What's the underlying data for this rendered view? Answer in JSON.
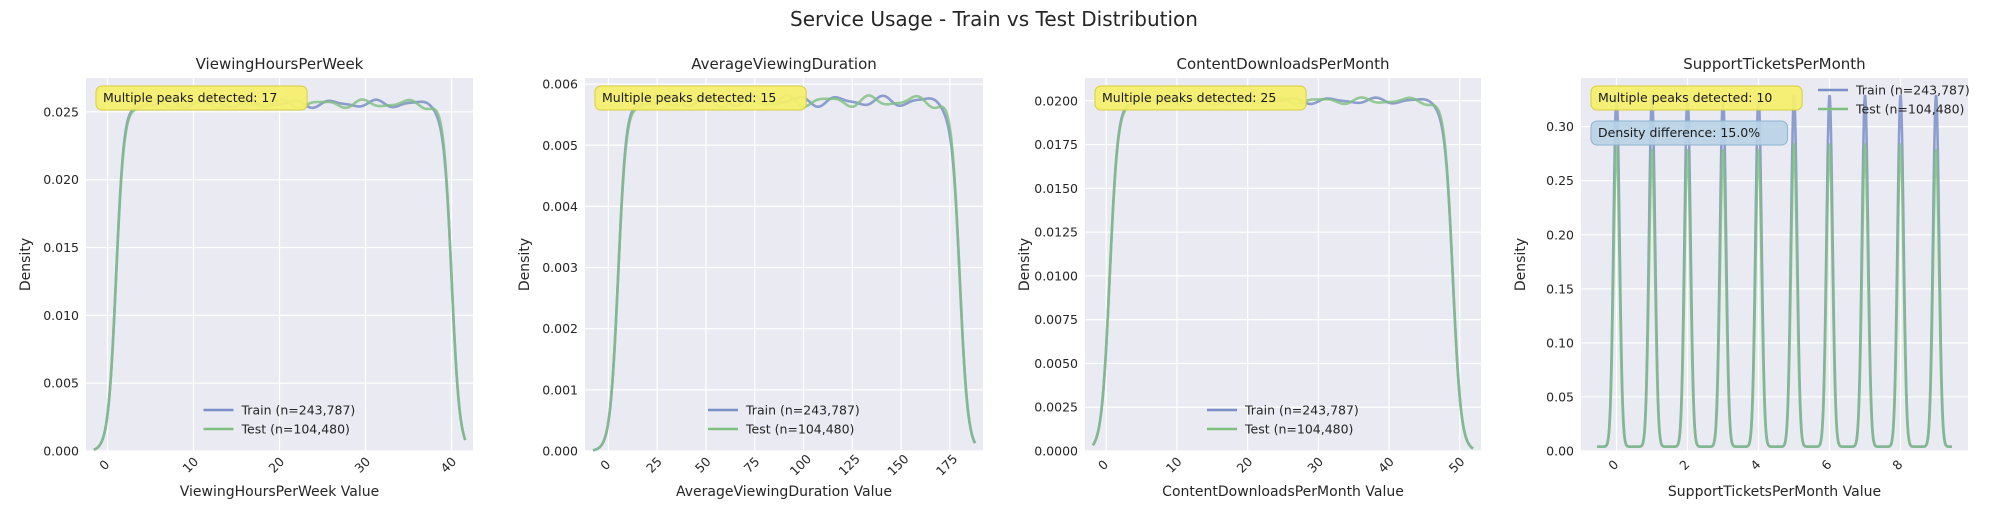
{
  "suptitle": "Service Usage - Train vs Test Distribution",
  "colors": {
    "train": "#7a8fc7",
    "test": "#7fbf7f",
    "overlap": "#6aa39a",
    "peaks_box": "#f5f06a",
    "diff_box": "#b9d3e6"
  },
  "chart_data": [
    {
      "type": "line",
      "title": "ViewingHoursPerWeek",
      "xlabel": "ViewingHoursPerWeek Value",
      "ylabel": "Density",
      "xlim": [
        -2.5,
        42.5
      ],
      "ylim": [
        0,
        0.0275
      ],
      "xticks": [
        0,
        10,
        20,
        30,
        40
      ],
      "xtick_labels": [
        "0",
        "10",
        "20",
        "30",
        "40"
      ],
      "yticks": [
        0,
        0.005,
        0.01,
        0.015,
        0.02,
        0.025
      ],
      "ytick_labels": [
        "0.000",
        "0.005",
        "0.010",
        "0.015",
        "0.020",
        "0.025"
      ],
      "xtick_rotation": 45,
      "dist": "uniform",
      "range": [
        1,
        40
      ],
      "plateau": 0.0256,
      "ripple": 0.0003,
      "legend_pos": "lower-center",
      "series": [
        {
          "name": "Train (n=243,787)",
          "kind": "train"
        },
        {
          "name": "Test (n=104,480)",
          "kind": "test"
        }
      ],
      "annotations": [
        {
          "text": "Multiple peaks detected: 17",
          "kind": "peaks"
        }
      ]
    },
    {
      "type": "line",
      "title": "AverageViewingDuration",
      "xlabel": "AverageViewingDuration Value",
      "ylabel": "Density",
      "xlim": [
        -12,
        192
      ],
      "ylim": [
        0,
        0.0061
      ],
      "xticks": [
        0,
        25,
        50,
        75,
        100,
        125,
        150,
        175
      ],
      "xtick_labels": [
        "0",
        "25",
        "50",
        "75",
        "100",
        "125",
        "150",
        "175"
      ],
      "yticks": [
        0,
        0.001,
        0.002,
        0.003,
        0.004,
        0.005,
        0.006
      ],
      "ytick_labels": [
        "0.000",
        "0.001",
        "0.002",
        "0.003",
        "0.004",
        "0.005",
        "0.006"
      ],
      "xtick_rotation": 45,
      "dist": "uniform",
      "range": [
        5,
        180
      ],
      "plateau": 0.00572,
      "ripple": 9e-05,
      "legend_pos": "lower-center",
      "series": [
        {
          "name": "Train (n=243,787)",
          "kind": "train"
        },
        {
          "name": "Test (n=104,480)",
          "kind": "test"
        }
      ],
      "annotations": [
        {
          "text": "Multiple peaks detected: 15",
          "kind": "peaks"
        }
      ]
    },
    {
      "type": "line",
      "title": "ContentDownloadsPerMonth",
      "xlabel": "ContentDownloadsPerMonth Value",
      "ylabel": "Density",
      "xlim": [
        -3,
        53
      ],
      "ylim": [
        0,
        0.0213
      ],
      "xticks": [
        0,
        10,
        20,
        30,
        40,
        50
      ],
      "xtick_labels": [
        "0",
        "10",
        "20",
        "30",
        "40",
        "50"
      ],
      "yticks": [
        0,
        0.0025,
        0.005,
        0.0075,
        0.01,
        0.0125,
        0.015,
        0.0175,
        0.02
      ],
      "ytick_labels": [
        "0.0000",
        "0.0025",
        "0.0050",
        "0.0075",
        "0.0100",
        "0.0125",
        "0.0150",
        "0.0175",
        "0.0200"
      ],
      "xtick_rotation": 45,
      "dist": "uniform",
      "range": [
        0.5,
        49
      ],
      "plateau": 0.02,
      "ripple": 0.00018,
      "legend_pos": "lower-center",
      "series": [
        {
          "name": "Train (n=243,787)",
          "kind": "train"
        },
        {
          "name": "Test (n=104,480)",
          "kind": "test"
        }
      ],
      "annotations": [
        {
          "text": "Multiple peaks detected: 25",
          "kind": "peaks"
        }
      ]
    },
    {
      "type": "line",
      "title": "SupportTicketsPerMonth",
      "xlabel": "SupportTicketsPerMonth Value",
      "ylabel": "Density",
      "xlim": [
        -1.0,
        9.9
      ],
      "ylim": [
        0,
        0.345
      ],
      "xticks": [
        0,
        2,
        4,
        6,
        8
      ],
      "xtick_labels": [
        "0",
        "2",
        "4",
        "6",
        "8"
      ],
      "yticks": [
        0,
        0.05,
        0.1,
        0.15,
        0.2,
        0.25,
        0.3
      ],
      "ytick_labels": [
        "0.00",
        "0.05",
        "0.10",
        "0.15",
        "0.20",
        "0.25",
        "0.30"
      ],
      "xtick_rotation": 45,
      "dist": "discrete",
      "peaks_x": [
        0,
        1,
        2,
        3,
        4,
        5,
        6,
        7,
        8,
        9
      ],
      "train_peaks": [
        0.325,
        0.325,
        0.325,
        0.325,
        0.325,
        0.325,
        0.325,
        0.325,
        0.325,
        0.325
      ],
      "test_peaks": [
        0.28,
        0.275,
        0.275,
        0.275,
        0.275,
        0.28,
        0.28,
        0.28,
        0.28,
        0.275
      ],
      "legend_pos": "upper-right",
      "series": [
        {
          "name": "Train (n=243,787)",
          "kind": "train"
        },
        {
          "name": "Test (n=104,480)",
          "kind": "test"
        }
      ],
      "annotations": [
        {
          "text": "Multiple peaks detected: 10",
          "kind": "peaks"
        },
        {
          "text": "Density difference: 15.0%",
          "kind": "diff"
        }
      ]
    }
  ]
}
